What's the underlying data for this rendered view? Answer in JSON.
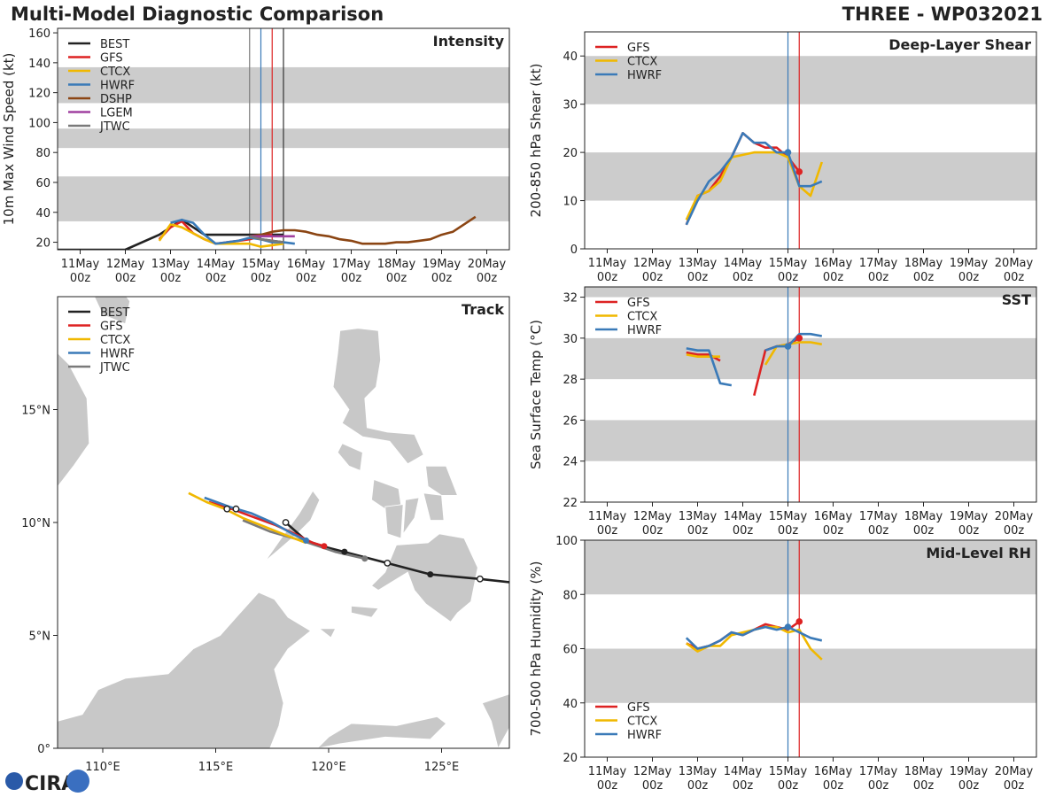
{
  "header": {
    "title": "Multi-Model Diagnostic Comparison",
    "storm": "THREE - WP032021"
  },
  "colors": {
    "BEST": "#222222",
    "GFS": "#dd2222",
    "CTCX": "#f0b800",
    "HWRF": "#3a7ab8",
    "DSHP": "#8b4513",
    "LGEM": "#a040a0",
    "JTWC": "#7a7a7a",
    "band": "#cccccc"
  },
  "logo_text": "CIRA",
  "time_ticks": [
    "11May\n00z",
    "12May\n00z",
    "13May\n00z",
    "14May\n00z",
    "15May\n00z",
    "16May\n00z",
    "17May\n00z",
    "18May\n00z",
    "19May\n00z",
    "20May\n00z"
  ],
  "chart_data": [
    {
      "id": "intensity",
      "type": "line",
      "title": "Intensity",
      "ylabel": "10m Max Wind Speed (kt)",
      "xlim": [
        -0.5,
        9.5
      ],
      "ylim": [
        15,
        163
      ],
      "yticks": [
        20,
        40,
        60,
        80,
        100,
        120,
        140,
        160
      ],
      "bands": [
        [
          34,
          64
        ],
        [
          83,
          96
        ],
        [
          113,
          137
        ]
      ],
      "vlines": [
        {
          "x": 3.75,
          "color": "#7a7a7a"
        },
        {
          "x": 4.0,
          "color": "#3a7ab8"
        },
        {
          "x": 4.25,
          "color": "#dd2222"
        },
        {
          "x": 4.5,
          "color": "#333333"
        }
      ],
      "legend": [
        "BEST",
        "GFS",
        "CTCX",
        "HWRF",
        "DSHP",
        "LGEM",
        "JTWC"
      ],
      "series": [
        {
          "name": "BEST",
          "x": [
            -1,
            0,
            1,
            1.75,
            2,
            2.25,
            2.75,
            3,
            3.5,
            4,
            4.5
          ],
          "y": [
            15,
            15,
            15,
            25,
            30,
            35,
            25,
            25,
            25,
            25,
            25
          ]
        },
        {
          "name": "BEST",
          "x": [
            3.75,
            4.0,
            4.25,
            4.5
          ],
          "y": [
            24,
            22,
            21,
            20
          ]
        },
        {
          "name": "GFS",
          "x": [
            1.75,
            2.0,
            2.25,
            2.5,
            2.75,
            3.0,
            3.25,
            3.5,
            3.75,
            4.0,
            4.25
          ],
          "y": [
            22,
            30,
            34,
            26,
            22,
            19,
            20,
            21,
            22,
            24,
            25
          ]
        },
        {
          "name": "CTCX",
          "x": [
            1.75,
            2.0,
            2.25,
            2.5,
            2.75,
            3.0,
            3.25,
            3.5,
            3.75,
            4.0,
            4.25,
            4.5
          ],
          "y": [
            21,
            32,
            30,
            26,
            22,
            19,
            19,
            19,
            19,
            17,
            18,
            19
          ]
        },
        {
          "name": "HWRF",
          "x": [
            2.0,
            2.25,
            2.5,
            2.75,
            3.0,
            3.25,
            3.5,
            3.75,
            4.0,
            4.25,
            4.5,
            4.75
          ],
          "y": [
            33,
            35,
            33,
            25,
            19,
            20,
            21,
            23,
            22,
            20,
            20,
            19
          ]
        },
        {
          "name": "DSHP",
          "x": [
            3.75,
            4.0,
            4.25,
            4.5,
            4.75,
            5.0,
            5.25,
            5.5,
            5.75,
            6.0,
            6.25,
            6.5,
            6.75,
            7.0,
            7.25,
            7.5,
            7.75,
            8.0,
            8.25,
            8.5,
            8.75
          ],
          "y": [
            24,
            25,
            27,
            28,
            28,
            27,
            25,
            24,
            22,
            21,
            19,
            19,
            19,
            20,
            20,
            21,
            22,
            25,
            27,
            32,
            37
          ]
        },
        {
          "name": "LGEM",
          "x": [
            3.75,
            4.0,
            4.25,
            4.5,
            4.75
          ],
          "y": [
            24,
            24,
            24,
            24,
            24
          ]
        },
        {
          "name": "JTWC",
          "x": [
            3.75,
            4.0,
            4.25,
            4.5
          ],
          "y": [
            24,
            22,
            21,
            20
          ]
        }
      ]
    },
    {
      "id": "track",
      "type": "line",
      "title": "Track",
      "xlim": [
        108,
        128
      ],
      "ylim": [
        0,
        20
      ],
      "xticks": [
        110,
        115,
        120,
        125
      ],
      "xtick_labels": [
        "110°E",
        "115°E",
        "120°E",
        "125°E"
      ],
      "yticks": [
        0,
        5,
        10,
        15
      ],
      "ytick_labels": [
        "0°",
        "5°N",
        "10°N",
        "15°N"
      ],
      "legend": [
        "BEST",
        "GFS",
        "CTCX",
        "HWRF",
        "JTWC"
      ],
      "series": [
        {
          "name": "BEST",
          "lon": [
            128.5,
            126.7,
            124.5,
            122.6,
            120.7,
            119.9,
            119.0,
            118.1
          ],
          "lat": [
            7.3,
            7.5,
            7.7,
            8.2,
            8.7,
            8.9,
            9.2,
            10.0
          ]
        },
        {
          "name": "JTWC",
          "lon": [
            121.6,
            120.3,
            118.8,
            117.4,
            116.2
          ],
          "lat": [
            8.4,
            8.7,
            9.2,
            9.6,
            10.1
          ]
        },
        {
          "name": "GFS",
          "lon": [
            119.8,
            119.3,
            118.5,
            117.6,
            116.5,
            115.7,
            114.7
          ],
          "lat": [
            8.95,
            9.1,
            9.5,
            9.9,
            10.3,
            10.6,
            10.9
          ]
        },
        {
          "name": "CTCX",
          "lon": [
            119.0,
            118.2,
            117.2,
            116.2,
            115.4,
            114.6,
            113.8
          ],
          "lat": [
            9.1,
            9.4,
            9.8,
            10.2,
            10.6,
            10.9,
            11.3
          ]
        },
        {
          "name": "HWRF",
          "lon": [
            119.0,
            118.4,
            117.5,
            116.6,
            115.6,
            114.5
          ],
          "lat": [
            9.2,
            9.5,
            10.0,
            10.4,
            10.7,
            11.1
          ]
        }
      ],
      "open_points": [
        [
          126.7,
          7.5
        ],
        [
          122.6,
          8.2
        ],
        [
          118.1,
          10.0
        ],
        [
          115.9,
          10.6
        ],
        [
          115.5,
          10.6
        ]
      ],
      "filled_points": [
        [
          124.5,
          7.7,
          "BEST"
        ],
        [
          120.7,
          8.7,
          "BEST"
        ],
        [
          119.8,
          8.95,
          "GFS"
        ],
        [
          121.6,
          8.4,
          "JTWC"
        ],
        [
          119.0,
          9.2,
          "HWRF"
        ]
      ]
    },
    {
      "id": "shear",
      "type": "line",
      "title": "Deep-Layer Shear",
      "ylabel": "200-850 hPa Shear (kt)",
      "xlim": [
        -0.5,
        9.5
      ],
      "ylim": [
        0,
        45
      ],
      "yticks": [
        0,
        10,
        20,
        30,
        40
      ],
      "bands": [
        [
          10,
          20
        ],
        [
          30,
          40
        ]
      ],
      "vlines": [
        {
          "x": 4.0,
          "color": "#3a7ab8"
        },
        {
          "x": 4.25,
          "color": "#dd2222"
        }
      ],
      "legend": [
        "GFS",
        "CTCX",
        "HWRF"
      ],
      "series": [
        {
          "name": "GFS",
          "x": [
            1.75,
            2.0,
            2.25,
            2.5,
            2.75,
            3.0,
            3.25,
            3.5,
            3.75,
            4.0,
            4.25
          ],
          "y": [
            5,
            11,
            12,
            15,
            19,
            24,
            22,
            21,
            21,
            19,
            16
          ]
        },
        {
          "name": "CTCX",
          "x": [
            1.75,
            2.0,
            2.25,
            2.5,
            2.75,
            3.25,
            3.5,
            3.75,
            4.0,
            4.25,
            4.5,
            4.75
          ],
          "y": [
            6,
            11,
            12,
            14,
            19,
            20,
            20,
            20,
            19,
            13,
            11,
            18
          ]
        },
        {
          "name": "HWRF",
          "x": [
            1.75,
            2.0,
            2.25,
            2.5,
            2.75,
            3.0,
            3.25,
            3.5,
            3.75,
            4.0,
            4.25,
            4.5,
            4.75
          ],
          "y": [
            5,
            10,
            14,
            16,
            19,
            24,
            22,
            22,
            20,
            20,
            13,
            13,
            14
          ]
        }
      ],
      "markers": [
        {
          "name": "GFS",
          "x": 4.25,
          "y": 16
        },
        {
          "name": "HWRF",
          "x": 4.0,
          "y": 20
        }
      ]
    },
    {
      "id": "sst",
      "type": "line",
      "title": "SST",
      "ylabel": "Sea Surface Temp (°C)",
      "xlim": [
        -0.5,
        9.5
      ],
      "ylim": [
        22,
        32.5
      ],
      "yticks": [
        22,
        24,
        26,
        28,
        30,
        32
      ],
      "bands": [
        [
          24,
          26
        ],
        [
          28,
          30
        ],
        [
          32,
          34
        ]
      ],
      "vlines": [
        {
          "x": 4.0,
          "color": "#3a7ab8"
        },
        {
          "x": 4.25,
          "color": "#dd2222"
        }
      ],
      "legend": [
        "GFS",
        "CTCX",
        "HWRF"
      ],
      "series": [
        {
          "name": "GFS",
          "x": [
            1.75,
            2.0,
            2.25,
            2.5
          ],
          "y": [
            29.3,
            29.2,
            29.2,
            28.9
          ]
        },
        {
          "name": "GFS",
          "x": [
            3.25,
            3.5,
            3.75,
            4.0,
            4.25
          ],
          "y": [
            27.2,
            29.4,
            29.6,
            29.7,
            30.0
          ]
        },
        {
          "name": "CTCX",
          "x": [
            1.75,
            2.0,
            2.25,
            2.5
          ],
          "y": [
            29.2,
            29.1,
            29.1,
            29.1
          ]
        },
        {
          "name": "CTCX",
          "x": [
            3.5,
            3.75,
            4.0,
            4.25,
            4.5,
            4.75
          ],
          "y": [
            28.7,
            29.6,
            29.7,
            29.8,
            29.8,
            29.7
          ]
        },
        {
          "name": "HWRF",
          "x": [
            1.75,
            2.0,
            2.25,
            2.5,
            2.75
          ],
          "y": [
            29.5,
            29.4,
            29.4,
            27.8,
            27.7
          ]
        },
        {
          "name": "HWRF",
          "x": [
            3.5,
            3.75,
            4.0,
            4.25,
            4.5,
            4.75
          ],
          "y": [
            29.4,
            29.6,
            29.6,
            30.2,
            30.2,
            30.1
          ]
        }
      ],
      "markers": [
        {
          "name": "GFS",
          "x": 4.25,
          "y": 30.0
        },
        {
          "name": "HWRF",
          "x": 4.0,
          "y": 29.6
        }
      ]
    },
    {
      "id": "rh",
      "type": "line",
      "title": "Mid-Level RH",
      "ylabel": "700-500 hPa Humidity (%)",
      "xlim": [
        -0.5,
        9.5
      ],
      "ylim": [
        20,
        100
      ],
      "yticks": [
        20,
        40,
        60,
        80,
        100
      ],
      "bands": [
        [
          40,
          60
        ],
        [
          80,
          100
        ]
      ],
      "vlines": [
        {
          "x": 4.0,
          "color": "#3a7ab8"
        },
        {
          "x": 4.25,
          "color": "#dd2222"
        }
      ],
      "legend": [
        "GFS",
        "CTCX",
        "HWRF"
      ],
      "legend_position": "bottom-left",
      "series": [
        {
          "name": "GFS",
          "x": [
            1.75,
            2.0,
            2.25,
            2.5,
            2.75,
            3.0,
            3.25,
            3.5,
            3.75,
            4.0,
            4.25
          ],
          "y": [
            62,
            60,
            61,
            63,
            66,
            65,
            67,
            69,
            68,
            67,
            70
          ]
        },
        {
          "name": "CTCX",
          "x": [
            1.75,
            2.0,
            2.25,
            2.5,
            2.75,
            3.0,
            3.25,
            3.5,
            3.75,
            4.0,
            4.25,
            4.5,
            4.75
          ],
          "y": [
            62,
            59,
            61,
            61,
            65,
            66,
            67,
            68,
            68,
            66,
            67,
            60,
            56
          ]
        },
        {
          "name": "HWRF",
          "x": [
            1.75,
            2.0,
            2.25,
            2.5,
            2.75,
            3.0,
            3.25,
            3.5,
            3.75,
            4.0,
            4.25,
            4.5,
            4.75
          ],
          "y": [
            64,
            60,
            61,
            63,
            66,
            65,
            67,
            68,
            67,
            68,
            66,
            64,
            63
          ]
        }
      ],
      "markers": [
        {
          "name": "GFS",
          "x": 4.25,
          "y": 70
        },
        {
          "name": "HWRF",
          "x": 4.0,
          "y": 68
        }
      ]
    }
  ]
}
